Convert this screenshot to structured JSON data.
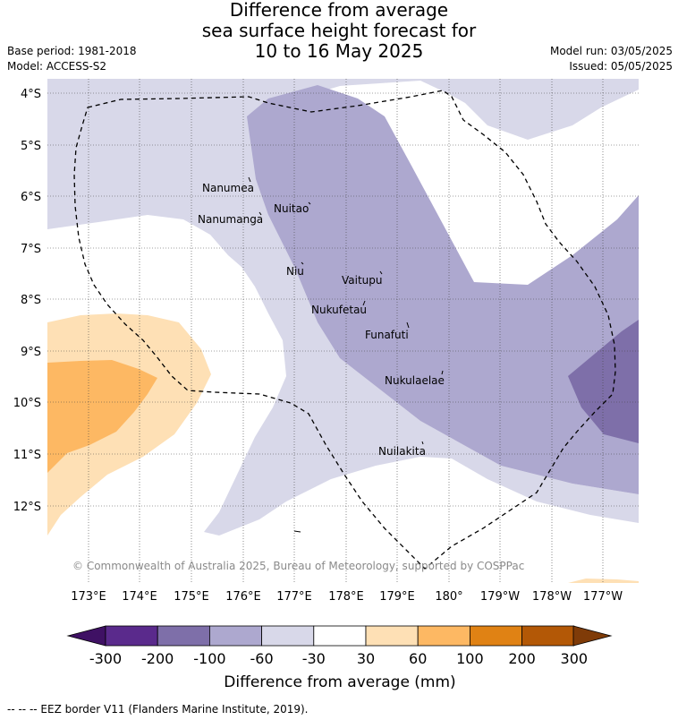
{
  "header": {
    "title_line1": "Difference from average",
    "title_line2": "sea surface height forecast for",
    "title_line3": "10 to 16 May 2025",
    "base_period": "Base period: 1981-2018",
    "model": "Model: ACCESS-S2",
    "model_run": "Model run: 03/05/2025",
    "issued": "Issued: 05/05/2025"
  },
  "map": {
    "lat_labels": [
      "4°S",
      "5°S",
      "6°S",
      "7°S",
      "8°S",
      "9°S",
      "10°S",
      "11°S",
      "12°S"
    ],
    "lon_labels": [
      "173°E",
      "174°E",
      "175°E",
      "176°E",
      "177°E",
      "178°E",
      "179°E",
      "180°",
      "179°W",
      "178°W",
      "177°W"
    ],
    "islands": [
      "Nanumea",
      "Nanumanga",
      "Nuitao",
      "Niu",
      "Vaitupu",
      "Nukufetau",
      "Funafuti",
      "Nukulaelae",
      "Nuilakita"
    ],
    "copyright": "© Commonwealth of Australia 2025, Bureau of Meteorology, supported by COSPPac",
    "colors": {
      "neg300": "#5a2a8c",
      "neg200": "#7e6fa9",
      "neg100": "#ada8cf",
      "neg60": "#d8d8e9",
      "neutral": "#ffffff",
      "pos30": "#fee0b5",
      "pos60": "#fdb863",
      "pos100": "#e08214",
      "pos200": "#b35806",
      "pos300": "#7f3b08"
    }
  },
  "colorbar": {
    "tick_labels": [
      "-300",
      "-200",
      "-100",
      "-60",
      "-30",
      "30",
      "60",
      "100",
      "200",
      "300"
    ],
    "label": "Difference from average (mm)"
  },
  "footer": {
    "legend_text": "--  --  -- EEZ border V11 (Flanders Marine Institute, 2019)."
  }
}
